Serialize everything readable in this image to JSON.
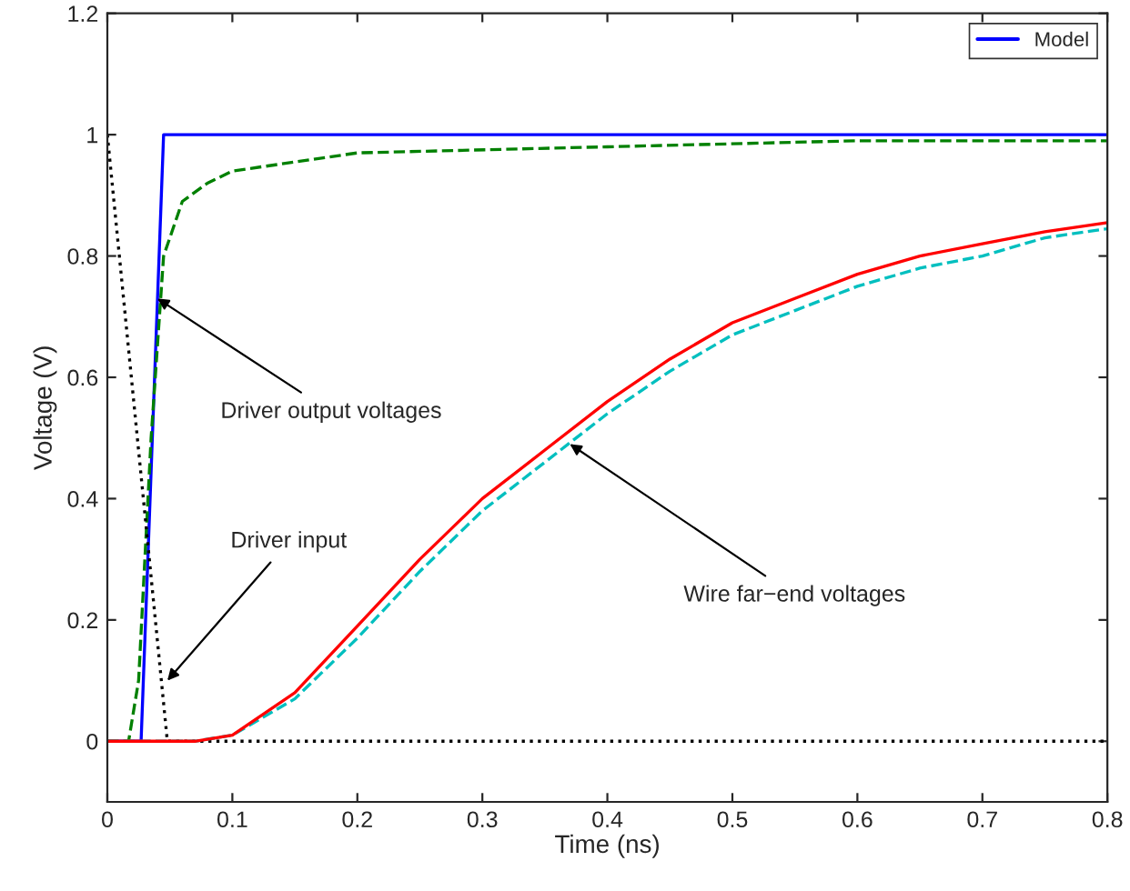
{
  "chart_data": {
    "type": "line",
    "xlabel": "Time (ns)",
    "ylabel": "Voltage (V)",
    "xlim": [
      0,
      0.8
    ],
    "ylim": [
      -0.1,
      1.2
    ],
    "xticks": [
      0,
      0.1,
      0.2,
      0.3,
      0.4,
      0.5,
      0.6,
      0.7,
      0.8
    ],
    "yticks": [
      0,
      0.2,
      0.4,
      0.6,
      0.8,
      1,
      1.2
    ],
    "grid": false,
    "legend": "top right",
    "series": [
      {
        "name": "Model",
        "color": "#0000ff",
        "line_style": "solid",
        "x": [
          0,
          0.027,
          0.045,
          0.8
        ],
        "values": [
          0,
          0,
          1,
          1
        ]
      },
      {
        "color": "#008000",
        "line_style": "dashed",
        "x": [
          0,
          0.017,
          0.025,
          0.035,
          0.045,
          0.06,
          0.08,
          0.1,
          0.2,
          0.4,
          0.6,
          0.8
        ],
        "values": [
          0,
          0,
          0.1,
          0.5,
          0.8,
          0.89,
          0.92,
          0.94,
          0.97,
          0.98,
          0.99,
          0.99
        ]
      },
      {
        "color": "#000000",
        "line_style": "dotted",
        "x": [
          0,
          0.048,
          0.8
        ],
        "values": [
          1,
          0,
          0
        ]
      },
      {
        "color": "#00bfbf",
        "line_style": "dashed",
        "x": [
          0,
          0.07,
          0.1,
          0.15,
          0.2,
          0.25,
          0.3,
          0.35,
          0.4,
          0.45,
          0.5,
          0.55,
          0.6,
          0.65,
          0.7,
          0.75,
          0.8
        ],
        "values": [
          0,
          0,
          0.01,
          0.07,
          0.17,
          0.28,
          0.38,
          0.46,
          0.54,
          0.61,
          0.67,
          0.71,
          0.75,
          0.78,
          0.8,
          0.83,
          0.845
        ]
      },
      {
        "color": "#ff0000",
        "line_style": "solid",
        "x": [
          0,
          0.07,
          0.1,
          0.15,
          0.2,
          0.25,
          0.3,
          0.35,
          0.4,
          0.45,
          0.5,
          0.55,
          0.6,
          0.65,
          0.7,
          0.75,
          0.8
        ],
        "values": [
          0,
          0,
          0.01,
          0.08,
          0.19,
          0.3,
          0.4,
          0.48,
          0.56,
          0.63,
          0.69,
          0.73,
          0.77,
          0.8,
          0.82,
          0.84,
          0.855
        ]
      }
    ],
    "annotations": [
      {
        "text": "Driver output voltages",
        "x": 0.04,
        "y": 0.73
      },
      {
        "text": "Driver input",
        "x": 0.048,
        "y": 0.1
      },
      {
        "text": "Wire far−end voltages",
        "x": 0.37,
        "y": 0.49
      }
    ]
  }
}
